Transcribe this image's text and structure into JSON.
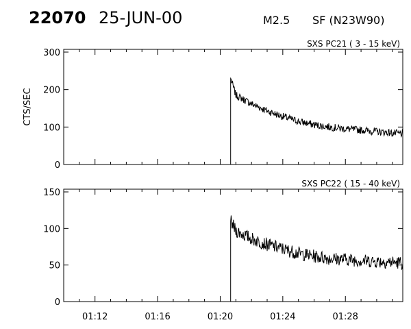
{
  "header": {
    "event_id": "22070",
    "date": "25-JUN-00",
    "flare_class": "M2.5",
    "flare_location": "SF (N23W90)"
  },
  "chart_data": [
    {
      "type": "line",
      "title": "SXS PC21  (  3 - 15 keV)",
      "ylabel": "CTS/SEC",
      "ylim": [
        0,
        300
      ],
      "y_ticks": [
        "0",
        "100",
        "200",
        "300"
      ],
      "xlim": [
        "01:10",
        "01:31:40"
      ],
      "x_ticks": [],
      "points": [
        [
          "01:10",
          0
        ],
        [
          "01:20:40",
          0
        ],
        [
          "01:20:40",
          230
        ],
        [
          "01:21",
          185
        ],
        [
          "01:22",
          162
        ],
        [
          "01:23",
          143
        ],
        [
          "01:24",
          128
        ],
        [
          "01:25",
          115
        ],
        [
          "01:26",
          106
        ],
        [
          "01:27",
          100
        ],
        [
          "01:28",
          95
        ],
        [
          "01:29",
          92
        ],
        [
          "01:30",
          88
        ],
        [
          "01:31",
          84
        ],
        [
          "01:31:40",
          82
        ]
      ],
      "noise": 10,
      "color": "#000000"
    },
    {
      "type": "line",
      "title": "SXS PC22  ( 15 - 40 keV)",
      "ylabel": "",
      "ylim": [
        0,
        150
      ],
      "y_ticks": [
        "0",
        "50",
        "100",
        "150"
      ],
      "xlim": [
        "01:10",
        "01:31:40"
      ],
      "x_ticks": [
        "01:12",
        "01:16",
        "01:20",
        "01:24",
        "01:28"
      ],
      "points": [
        [
          "01:10",
          0
        ],
        [
          "01:20:40",
          0
        ],
        [
          "01:20:40",
          110
        ],
        [
          "01:21",
          97
        ],
        [
          "01:22",
          86
        ],
        [
          "01:23",
          78
        ],
        [
          "01:24",
          72
        ],
        [
          "01:25",
          66
        ],
        [
          "01:26",
          62
        ],
        [
          "01:27",
          59
        ],
        [
          "01:28",
          58
        ],
        [
          "01:29",
          56
        ],
        [
          "01:30",
          55
        ],
        [
          "01:31",
          54
        ],
        [
          "01:31:40",
          53
        ]
      ],
      "noise": 9,
      "color": "#000000"
    }
  ]
}
